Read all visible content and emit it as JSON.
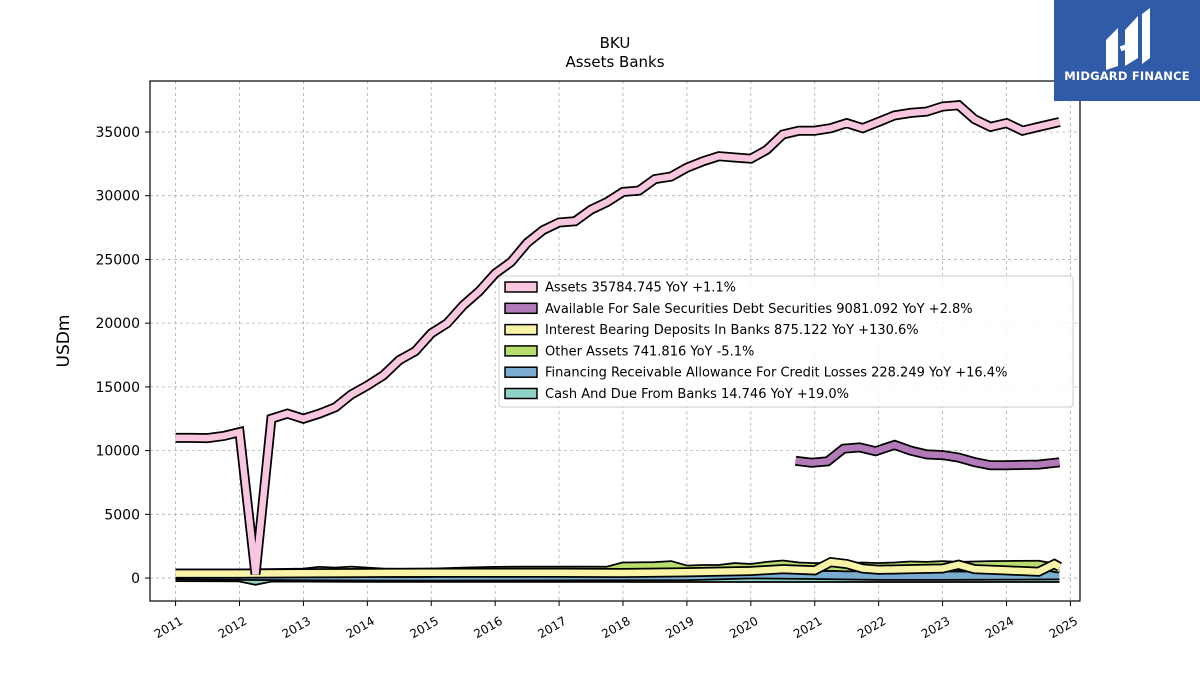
{
  "chart_data": {
    "type": "area",
    "title": "BKU",
    "subtitle": "Assets Banks",
    "ylabel": "USDm",
    "xlabel": "",
    "xlim": [
      2010.6,
      2025.15
    ],
    "ylim": [
      -1800,
      39000
    ],
    "x_ticks": [
      "2011",
      "2012",
      "2013",
      "2014",
      "2015",
      "2016",
      "2017",
      "2018",
      "2019",
      "2020",
      "2021",
      "2022",
      "2023",
      "2024",
      "2025"
    ],
    "y_ticks": [
      0,
      5000,
      10000,
      15000,
      20000,
      25000,
      30000,
      35000
    ],
    "grid": true,
    "legend_position": "center-right",
    "series": [
      {
        "name": "Assets",
        "legend_label": "Assets  35784.745 YoY +1.1%",
        "color": "#f8c6de",
        "points": [
          [
            2011.0,
            11000
          ],
          [
            2011.25,
            11000
          ],
          [
            2011.5,
            10980
          ],
          [
            2011.75,
            11150
          ],
          [
            2012.0,
            11450
          ],
          [
            2012.25,
            300
          ],
          [
            2012.5,
            12500
          ],
          [
            2012.75,
            12900
          ],
          [
            2013.0,
            12500
          ],
          [
            2013.25,
            12900
          ],
          [
            2013.5,
            13400
          ],
          [
            2013.75,
            14400
          ],
          [
            2014.0,
            15100
          ],
          [
            2014.25,
            15900
          ],
          [
            2014.5,
            17100
          ],
          [
            2014.75,
            17800
          ],
          [
            2015.0,
            19200
          ],
          [
            2015.25,
            20000
          ],
          [
            2015.5,
            21400
          ],
          [
            2015.75,
            22500
          ],
          [
            2016.0,
            23900
          ],
          [
            2016.25,
            24800
          ],
          [
            2016.5,
            26300
          ],
          [
            2016.75,
            27300
          ],
          [
            2017.0,
            27900
          ],
          [
            2017.25,
            28000
          ],
          [
            2017.5,
            28900
          ],
          [
            2017.75,
            29500
          ],
          [
            2018.0,
            30300
          ],
          [
            2018.25,
            30400
          ],
          [
            2018.5,
            31300
          ],
          [
            2018.75,
            31500
          ],
          [
            2019.0,
            32200
          ],
          [
            2019.25,
            32700
          ],
          [
            2019.5,
            33100
          ],
          [
            2019.75,
            33000
          ],
          [
            2020.0,
            32900
          ],
          [
            2020.25,
            33600
          ],
          [
            2020.5,
            34800
          ],
          [
            2020.75,
            35100
          ],
          [
            2021.0,
            35100
          ],
          [
            2021.25,
            35300
          ],
          [
            2021.5,
            35700
          ],
          [
            2021.75,
            35300
          ],
          [
            2022.0,
            35800
          ],
          [
            2022.25,
            36300
          ],
          [
            2022.5,
            36500
          ],
          [
            2022.75,
            36600
          ],
          [
            2023.0,
            37000
          ],
          [
            2023.25,
            37100
          ],
          [
            2023.5,
            36000
          ],
          [
            2023.75,
            35400
          ],
          [
            2024.0,
            35700
          ],
          [
            2024.25,
            35100
          ],
          [
            2024.5,
            35400
          ],
          [
            2024.83,
            35784
          ]
        ]
      },
      {
        "name": "Available For Sale Securities Debt Securities",
        "legend_label": "Available For Sale Securities Debt Securities  9081.092 YoY +2.8%",
        "color": "#b27ab8",
        "points": [
          [
            2020.7,
            9200
          ],
          [
            2020.95,
            9050
          ],
          [
            2021.2,
            9150
          ],
          [
            2021.45,
            10150
          ],
          [
            2021.7,
            10250
          ],
          [
            2021.95,
            9950
          ],
          [
            2022.25,
            10450
          ],
          [
            2022.5,
            10000
          ],
          [
            2022.75,
            9700
          ],
          [
            2023.0,
            9650
          ],
          [
            2023.25,
            9450
          ],
          [
            2023.5,
            9100
          ],
          [
            2023.75,
            8850
          ],
          [
            2024.0,
            8850
          ],
          [
            2024.25,
            8880
          ],
          [
            2024.5,
            8900
          ],
          [
            2024.83,
            9081
          ]
        ]
      },
      {
        "name": "Interest Bearing Deposits In Banks",
        "legend_label": "Interest Bearing Deposits In Banks  875.122 YoY +130.6%",
        "color": "#f7f4a8",
        "points": [
          [
            2011.0,
            350
          ],
          [
            2012.0,
            350
          ],
          [
            2013.0,
            380
          ],
          [
            2014.0,
            400
          ],
          [
            2015.0,
            420
          ],
          [
            2016.0,
            420
          ],
          [
            2017.0,
            420
          ],
          [
            2018.0,
            400
          ],
          [
            2019.0,
            450
          ],
          [
            2020.0,
            550
          ],
          [
            2020.5,
            700
          ],
          [
            2021.0,
            600
          ],
          [
            2021.25,
            1250
          ],
          [
            2021.5,
            1100
          ],
          [
            2021.75,
            750
          ],
          [
            2022.0,
            650
          ],
          [
            2022.5,
            700
          ],
          [
            2023.0,
            750
          ],
          [
            2023.25,
            1050
          ],
          [
            2023.5,
            700
          ],
          [
            2024.0,
            600
          ],
          [
            2024.5,
            500
          ],
          [
            2024.75,
            1100
          ],
          [
            2024.83,
            875
          ]
        ]
      },
      {
        "name": "Other Assets",
        "legend_label": "Other Assets  741.816 YoY -5.1%",
        "color": "#b8dc6e",
        "points": [
          [
            2011.0,
            350
          ],
          [
            2011.5,
            350
          ],
          [
            2012.0,
            350
          ],
          [
            2012.5,
            380
          ],
          [
            2013.0,
            420
          ],
          [
            2013.25,
            550
          ],
          [
            2013.5,
            500
          ],
          [
            2013.75,
            580
          ],
          [
            2014.0,
            500
          ],
          [
            2014.25,
            420
          ],
          [
            2014.5,
            400
          ],
          [
            2015.0,
            420
          ],
          [
            2015.5,
            500
          ],
          [
            2015.75,
            520
          ],
          [
            2016.0,
            550
          ],
          [
            2016.5,
            580
          ],
          [
            2017.0,
            580
          ],
          [
            2017.5,
            580
          ],
          [
            2017.75,
            560
          ],
          [
            2018.0,
            900
          ],
          [
            2018.5,
            920
          ],
          [
            2018.75,
            1000
          ],
          [
            2019.0,
            650
          ],
          [
            2019.25,
            700
          ],
          [
            2019.5,
            700
          ],
          [
            2019.75,
            850
          ],
          [
            2020.0,
            780
          ],
          [
            2020.25,
            950
          ],
          [
            2020.5,
            1050
          ],
          [
            2020.75,
            900
          ],
          [
            2021.0,
            850
          ],
          [
            2021.25,
            900
          ],
          [
            2021.5,
            850
          ],
          [
            2021.75,
            900
          ],
          [
            2022.0,
            850
          ],
          [
            2022.25,
            900
          ],
          [
            2022.5,
            980
          ],
          [
            2022.75,
            950
          ],
          [
            2023.0,
            1000
          ],
          [
            2023.25,
            950
          ],
          [
            2023.5,
            980
          ],
          [
            2023.75,
            1000
          ],
          [
            2024.0,
            1020
          ],
          [
            2024.5,
            1030
          ],
          [
            2024.83,
            742
          ]
        ]
      },
      {
        "name": "Financing Receivable Allowance For Credit Losses",
        "legend_label": "Financing Receivable Allowance For Credit Losses  228.249 YoY +16.4%",
        "color": "#7aaccf",
        "points": [
          [
            2011.0,
            220
          ],
          [
            2012.0,
            180
          ],
          [
            2013.0,
            150
          ],
          [
            2014.0,
            130
          ],
          [
            2015.0,
            120
          ],
          [
            2016.0,
            130
          ],
          [
            2017.0,
            140
          ],
          [
            2018.0,
            150
          ],
          [
            2019.0,
            150
          ],
          [
            2020.0,
            300
          ],
          [
            2021.0,
            250
          ],
          [
            2022.0,
            180
          ],
          [
            2023.0,
            180
          ],
          [
            2024.0,
            200
          ],
          [
            2024.83,
            228
          ]
        ]
      },
      {
        "name": "Cash And Due From Banks",
        "legend_label": "Cash And Due From Banks  14.746 YoY +19.0%",
        "color": "#8fd3c6",
        "points": [
          [
            2011.0,
            80
          ],
          [
            2012.0,
            60
          ],
          [
            2012.25,
            -200
          ],
          [
            2012.5,
            50
          ],
          [
            2013.0,
            40
          ],
          [
            2014.0,
            30
          ],
          [
            2015.0,
            25
          ],
          [
            2016.0,
            20
          ],
          [
            2017.0,
            20
          ],
          [
            2018.0,
            18
          ],
          [
            2019.0,
            16
          ],
          [
            2020.0,
            15
          ],
          [
            2021.0,
            14
          ],
          [
            2022.0,
            13
          ],
          [
            2023.0,
            12
          ],
          [
            2024.0,
            12
          ],
          [
            2024.83,
            15
          ]
        ]
      }
    ]
  },
  "logo": {
    "text": "MIDGARD FINANCE",
    "color": "#2f5ba8"
  }
}
